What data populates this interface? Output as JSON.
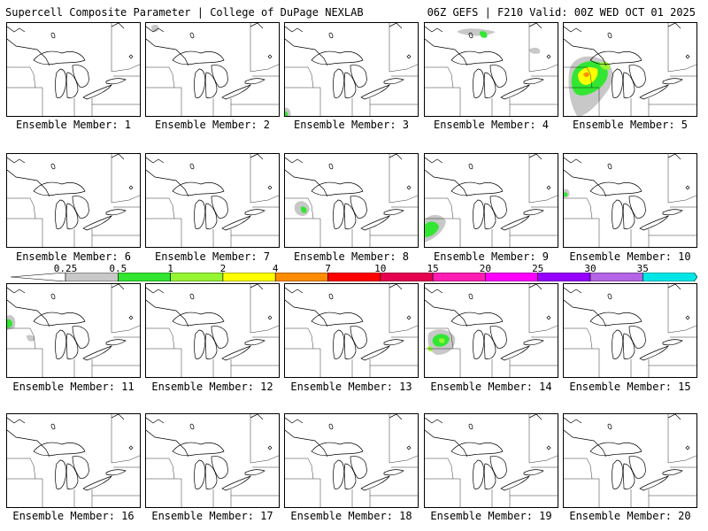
{
  "header": {
    "left": "Supercell Composite Parameter | College of DuPage NEXLAB",
    "right": "06Z GEFS | F210 Valid: 00Z WED OCT 01 2025"
  },
  "caption_prefix": "Ensemble Member:",
  "members": [
    {
      "label": "Ensemble Member: 1",
      "signal": "none"
    },
    {
      "label": "Ensemble Member: 2",
      "signal": "trace"
    },
    {
      "label": "Ensemble Member: 3",
      "signal": "trace"
    },
    {
      "label": "Ensemble Member: 4",
      "signal": "weak"
    },
    {
      "label": "Ensemble Member: 5",
      "signal": "strong"
    },
    {
      "label": "Ensemble Member: 6",
      "signal": "none"
    },
    {
      "label": "Ensemble Member: 7",
      "signal": "none"
    },
    {
      "label": "Ensemble Member: 8",
      "signal": "weak"
    },
    {
      "label": "Ensemble Member: 9",
      "signal": "weak"
    },
    {
      "label": "Ensemble Member: 10",
      "signal": "weak"
    },
    {
      "label": "Ensemble Member: 11",
      "signal": "weak"
    },
    {
      "label": "Ensemble Member: 12",
      "signal": "none"
    },
    {
      "label": "Ensemble Member: 13",
      "signal": "none"
    },
    {
      "label": "Ensemble Member: 14",
      "signal": "weak"
    },
    {
      "label": "Ensemble Member: 15",
      "signal": "none"
    },
    {
      "label": "Ensemble Member: 16",
      "signal": "none"
    },
    {
      "label": "Ensemble Member: 17",
      "signal": "none"
    },
    {
      "label": "Ensemble Member: 18",
      "signal": "none"
    },
    {
      "label": "Ensemble Member: 19",
      "signal": "none"
    },
    {
      "label": "Ensemble Member: 20",
      "signal": "none"
    }
  ],
  "legend": {
    "ticks": [
      "0.25",
      "0.5",
      "1",
      "2",
      "4",
      "7",
      "10",
      "15",
      "20",
      "25",
      "30",
      "35"
    ],
    "colors": [
      "#c8c8c8",
      "#32e632",
      "#96f532",
      "#ffff00",
      "#ff8c00",
      "#ff0000",
      "#e60050",
      "#ff1eb4",
      "#ff00ff",
      "#9600ff",
      "#b464e6",
      "#00e6e6"
    ]
  }
}
